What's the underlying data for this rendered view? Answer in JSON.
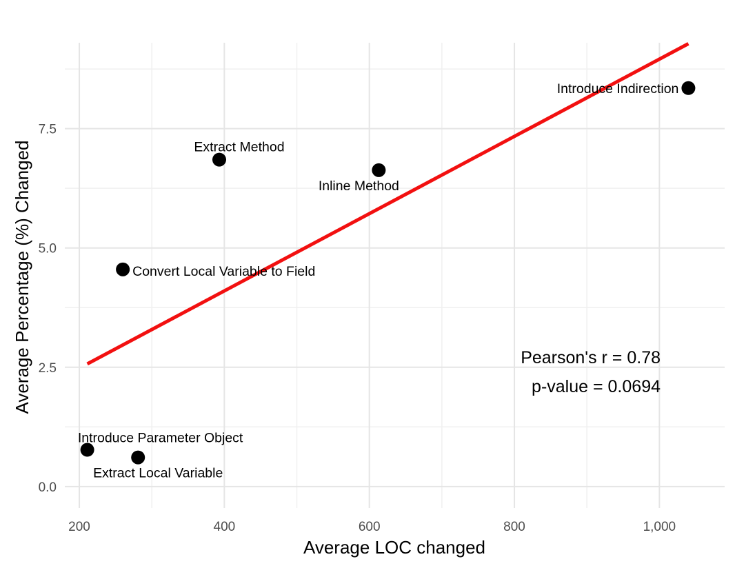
{
  "chart_data": {
    "type": "scatter",
    "title": "",
    "xlabel": "Average LOC changed",
    "ylabel": "Average Percentage (%) Changed",
    "xlim": [
      180,
      1090
    ],
    "ylim": [
      -0.45,
      9.3
    ],
    "x_ticks": [
      200,
      400,
      600,
      800,
      1000
    ],
    "x_tick_labels": [
      "200",
      "400",
      "600",
      "800",
      "1,000"
    ],
    "y_ticks": [
      0,
      2.5,
      5,
      7.5
    ],
    "y_tick_labels": [
      "0.0",
      "2.5",
      "5.0",
      "7.5"
    ],
    "x_minor_ticks": [
      300,
      500,
      700,
      900
    ],
    "y_minor_ticks": [
      1.25,
      3.75,
      6.25,
      8.75
    ],
    "grid": true,
    "points": [
      {
        "label": "Introduce Indirection",
        "x": 1040,
        "y": 8.35
      },
      {
        "label": "Extract Method",
        "x": 393,
        "y": 6.85
      },
      {
        "label": "Inline Method",
        "x": 613,
        "y": 6.63
      },
      {
        "label": "Convert Local Variable to Field",
        "x": 260,
        "y": 4.55
      },
      {
        "label": "Introduce Parameter Object",
        "x": 211,
        "y": 0.77
      },
      {
        "label": "Extract Local Variable",
        "x": 281,
        "y": 0.61
      }
    ],
    "regression_line": {
      "color": "#f21010",
      "x": [
        211,
        1040
      ],
      "y": [
        2.57,
        9.28
      ]
    },
    "annotations": {
      "line1": "Pearson's r = 0.78",
      "line2": "p-value = 0.0694"
    }
  }
}
